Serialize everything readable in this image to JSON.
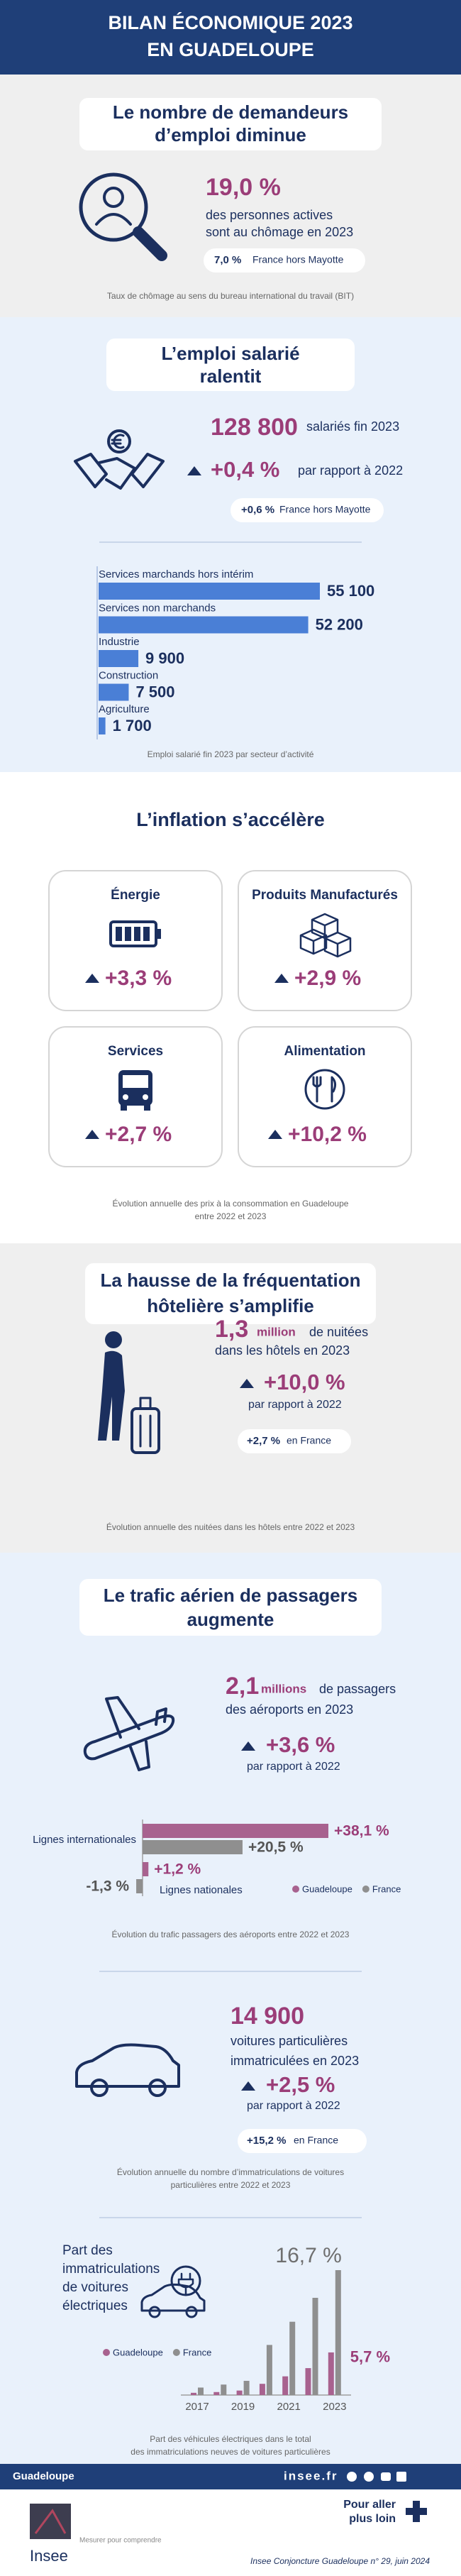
{
  "header": {
    "title_line1": "BILAN ÉCONOMIQUE 2023",
    "title_line2": "EN GUADELOUPE"
  },
  "chomage": {
    "title": [
      "Le nombre de demandeurs",
      "d’emploi diminue"
    ],
    "figure": "19,0 %",
    "text": [
      "des personnes actives",
      "sont au chômage en 2023"
    ],
    "compare_value": "7,0 %",
    "compare_text": "France hors Mayotte",
    "caption": "Taux de chômage au sens du bureau international du travail (BIT)"
  },
  "emploi": {
    "title": [
      "L’emploi salarié",
      "ralentit"
    ],
    "figure": "128 800",
    "figure_text": "salariés fin 2023",
    "change": "+0,4 %",
    "change_text": "par rapport à 2022",
    "compare_value": "+0,6 %",
    "compare_text": "France hors Mayotte"
  },
  "inflation": {
    "title": "L’inflation s’accélère",
    "cards": [
      {
        "label": "Énergie",
        "value": "+3,3 %"
      },
      {
        "label": "Produits Manufacturés",
        "value": "+2,9 %"
      },
      {
        "label": "Services",
        "value": "+2,7 %"
      },
      {
        "label": "Alimentation",
        "value": "+10,2 %"
      }
    ],
    "caption": [
      "Évolution annuelle des prix à la consommation en Guadeloupe",
      "entre 2022 et 2023"
    ]
  },
  "hotels": {
    "title": [
      "La hausse de la fréquentation",
      "hôtelière s’amplifie"
    ],
    "figure": "1,3",
    "figure_unit": "million",
    "figure_text": [
      "de nuitées",
      "dans les hôtels en 2023"
    ],
    "change": "+10,0 %",
    "change_text": "par rapport à 2022",
    "compare_value": "+2,7 %",
    "compare_text": "en France",
    "caption": "Évolution annuelle des nuitées dans les hôtels entre 2022 et 2023"
  },
  "aerien": {
    "title": [
      "Le trafic aérien de passagers",
      "augmente"
    ],
    "figure": "2,1",
    "figure_unit": "millions",
    "figure_text": [
      "de passagers",
      "des aéroports en 2023"
    ],
    "change": "+3,6 %",
    "change_text": "par rapport à 2022"
  },
  "voitures": {
    "figure": "14 900",
    "figure_text": [
      "voitures particulières",
      "immatriculées en 2023"
    ],
    "change": "+2,5 %",
    "change_text": "par rapport à 2022",
    "compare_value": "+15,2 %",
    "compare_text": "en France",
    "caption": [
      "Évolution annuelle du nombre d’immatriculations de voitures",
      "particulières entre 2022 et 2023"
    ]
  },
  "footer": {
    "region": "Guadeloupe",
    "site": "insee.fr",
    "logo": "Insee",
    "tagline": "Mesurer pour comprendre",
    "more": [
      "Pour aller",
      "plus loin"
    ],
    "reference": "Insee Conjoncture Guadeloupe n° 29, juin 2024"
  },
  "chart_data": [
    {
      "type": "hbar",
      "categories": [
        "Services marchands hors intérim",
        "Services non marchands",
        "Industrie",
        "Construction",
        "Agriculture"
      ],
      "values": [
        55100,
        52200,
        9900,
        7500,
        1700
      ],
      "value_labels": [
        "55 100",
        "52 200",
        "9 900",
        "7 500",
        "1 700"
      ],
      "color": "#4a7fd6",
      "caption": "Emploi salarié fin 2023 par secteur d’activité"
    },
    {
      "type": "hbar_grouped",
      "categories": [
        "Lignes internationales",
        "Lignes nationales"
      ],
      "series": [
        {
          "name": "Guadeloupe",
          "color": "#a8628f",
          "values": [
            38.1,
            1.2
          ],
          "value_labels": [
            "+38,1 %",
            "+1,2 %"
          ]
        },
        {
          "name": "France",
          "color": "#8f8f8f",
          "values": [
            20.5,
            -1.3
          ],
          "value_labels": [
            "+20,5 %",
            "-1,3 %"
          ]
        }
      ],
      "caption": "Évolution du trafic passagers des aéroports entre 2022 et 2023"
    },
    {
      "type": "bar_grouped",
      "title": [
        "Part des",
        "immatriculations",
        "de voitures",
        "électriques"
      ],
      "categories": [
        "2017",
        null,
        "2019",
        null,
        "2021",
        null,
        "2023"
      ],
      "series": [
        {
          "name": "Guadeloupe",
          "color": "#a8628f",
          "values": [
            0.3,
            0.4,
            0.6,
            1.5,
            2.5,
            3.6,
            5.7
          ],
          "value_labels": [
            null,
            null,
            null,
            null,
            null,
            null,
            "5,7 %"
          ]
        },
        {
          "name": "France",
          "color": "#8f8f8f",
          "values": [
            1.0,
            1.4,
            1.9,
            6.7,
            9.8,
            13.0,
            16.7
          ],
          "value_labels": [
            null,
            null,
            null,
            null,
            null,
            null,
            "16,7 %"
          ]
        }
      ],
      "caption": [
        "Part des véhicules électriques dans le total",
        "des immatriculations neuves de voitures particulières"
      ]
    }
  ]
}
